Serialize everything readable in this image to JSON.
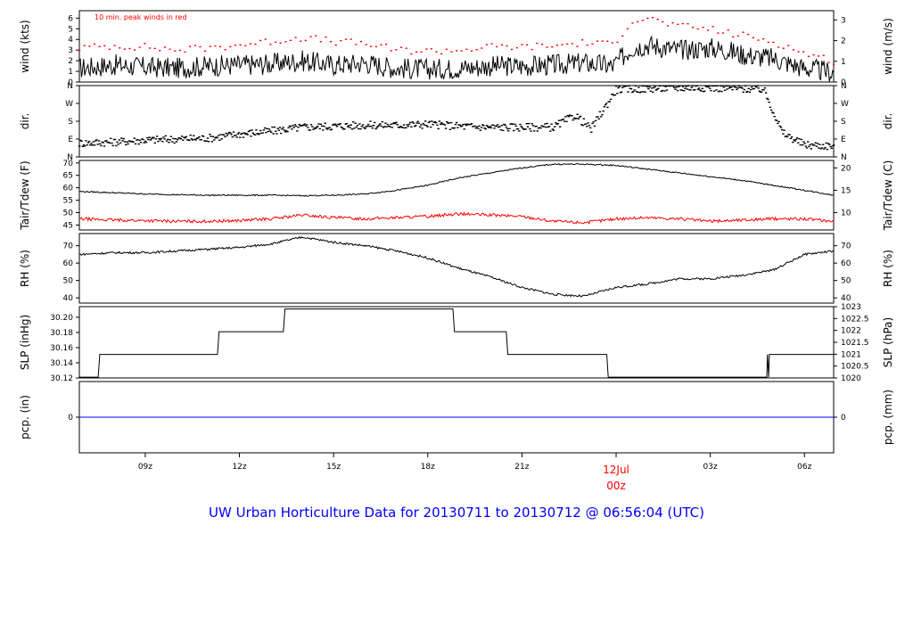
{
  "footer_title": "UW Urban Horticulture Data for 20130711  to  20130712 @ 06:56:04  (UTC)",
  "colors": {
    "frame": "#000000",
    "primary_series": "#000000",
    "peak_series": "#ff0000",
    "dewpoint_series": "#ff0000",
    "precip_series": "#0000ff",
    "footer_text": "#0000ff",
    "date_label": "#ff0000"
  },
  "chart_data": {
    "type": "line",
    "x_axis": {
      "unit": "UTC hour",
      "range": [
        6.9,
        30.93
      ],
      "ticks": [
        {
          "x": 9,
          "label": "09z"
        },
        {
          "x": 12,
          "label": "12z"
        },
        {
          "x": 15,
          "label": "15z"
        },
        {
          "x": 18,
          "label": "18z"
        },
        {
          "x": 21,
          "label": "21z"
        },
        {
          "x": 24,
          "label": "",
          "date_label": "12Jul",
          "sub_label": "00z"
        },
        {
          "x": 27,
          "label": "03z"
        },
        {
          "x": 30,
          "label": "06z"
        }
      ]
    },
    "panels": [
      {
        "id": "wind",
        "ylabel_left": "wind (kts)",
        "ylabel_right": "wind (m/s)",
        "ylim": [
          0,
          6.7
        ],
        "left_ticks": [
          0,
          1,
          2,
          3,
          4,
          5,
          6
        ],
        "right_ticks": [
          {
            "v": 0,
            "label": "0"
          },
          {
            "v": 1,
            "label": "1"
          },
          {
            "v": 2,
            "label": "2"
          },
          {
            "v": 3,
            "label": "3"
          }
        ],
        "right_factor": 1.944,
        "annotation": "10 min. peak winds in red",
        "series": [
          {
            "name": "wind",
            "style": "line",
            "x": [
              6.9,
              8,
              9,
              10,
              11,
              12,
              13,
              14,
              15,
              16,
              17,
              18,
              19,
              20,
              21,
              22,
              23,
              23.9,
              24.5,
              25,
              26,
              27,
              27.5,
              28,
              29,
              30,
              30.93
            ],
            "y": [
              1.3,
              1.6,
              1.4,
              1.3,
              1.5,
              1.6,
              1.7,
              2.0,
              1.6,
              1.8,
              1.3,
              1.2,
              1.3,
              1.5,
              1.5,
              1.6,
              1.8,
              1.5,
              3.2,
              3.5,
              3.0,
              3.2,
              3.0,
              2.6,
              2.2,
              1.3,
              0.9
            ]
          },
          {
            "name": "peak",
            "style": "dots",
            "x": [
              6.9,
              8,
              9,
              10,
              11,
              12,
              13,
              14,
              15,
              16,
              17,
              18,
              19,
              20,
              21,
              22,
              23,
              23.9,
              24.5,
              25,
              26,
              27,
              27.5,
              28,
              29,
              30,
              30.93
            ],
            "y": [
              3.2,
              3.4,
              3.3,
              3.0,
              3.2,
              3.5,
              3.8,
              4.2,
              3.8,
              3.6,
              3.0,
              2.9,
              3.0,
              3.3,
              3.3,
              3.4,
              3.7,
              3.5,
              5.8,
              6.0,
              5.2,
              5.0,
              4.6,
              4.4,
              3.8,
              2.7,
              2.0
            ]
          }
        ]
      },
      {
        "id": "dir",
        "ylabel_left": "dir.",
        "ylabel_right": "dir.",
        "ylim": [
          0,
          360
        ],
        "left_ticks": [
          {
            "v": 0,
            "label": "N"
          },
          {
            "v": 90,
            "label": "E"
          },
          {
            "v": 180,
            "label": "S"
          },
          {
            "v": 270,
            "label": "W"
          },
          {
            "v": 360,
            "label": "N"
          }
        ],
        "right_ticks": [
          {
            "v": 0,
            "label": "N"
          },
          {
            "v": 90,
            "label": "E"
          },
          {
            "v": 180,
            "label": "S"
          },
          {
            "v": 270,
            "label": "W"
          },
          {
            "v": 360,
            "label": "N"
          }
        ],
        "series": [
          {
            "name": "direction",
            "style": "dots",
            "x": [
              6.9,
              8,
              9,
              10,
              11,
              12,
              13,
              14,
              15,
              16,
              17,
              18,
              19,
              20,
              21,
              22,
              22.7,
              23.2,
              24,
              25,
              26,
              27,
              28,
              28.7,
              29.3,
              30,
              30.93
            ],
            "y": [
              70,
              75,
              85,
              90,
              95,
              115,
              130,
              150,
              155,
              160,
              160,
              165,
              155,
              150,
              150,
              150,
              210,
              140,
              340,
              345,
              350,
              350,
              345,
              340,
              120,
              60,
              55
            ]
          }
        ]
      },
      {
        "id": "temp",
        "ylabel_left": "Tair/Tdew (F)",
        "ylabel_right": "Tair/Tdew (C)",
        "ylim": [
          43,
          71
        ],
        "left_ticks": [
          45,
          50,
          55,
          60,
          65,
          70
        ],
        "right_ticks": [
          {
            "v": 10,
            "label": "10"
          },
          {
            "v": 15,
            "label": "15"
          },
          {
            "v": 20,
            "label": "20"
          }
        ],
        "right_transform": "celsius",
        "series": [
          {
            "name": "Tair",
            "style": "line",
            "x": [
              6.9,
              8,
              9,
              10,
              11,
              12,
              13,
              14,
              15,
              16,
              17,
              18,
              19,
              20,
              21,
              22,
              23,
              24,
              25,
              26,
              27,
              28,
              29,
              30,
              30.93
            ],
            "y": [
              58.5,
              58.0,
              57.5,
              57.2,
              57.0,
              57.0,
              57.0,
              56.8,
              57.0,
              57.5,
              59.0,
              61.0,
              64.0,
              66.0,
              68.0,
              69.5,
              69.5,
              69.0,
              67.5,
              66.0,
              64.5,
              63.0,
              61.0,
              59.0,
              57.0
            ]
          },
          {
            "name": "Tdew",
            "style": "line",
            "x": [
              6.9,
              8,
              9,
              10,
              11,
              12,
              13,
              14,
              15,
              16,
              17,
              18,
              19,
              20,
              21,
              22,
              23,
              24,
              25,
              26,
              27,
              28,
              29,
              30,
              30.93
            ],
            "y": [
              47.5,
              47.0,
              46.8,
              46.5,
              46.5,
              46.8,
              47.5,
              49.0,
              48.0,
              47.5,
              48.0,
              48.5,
              49.5,
              49.0,
              48.5,
              46.5,
              46.0,
              47.5,
              48.0,
              47.5,
              46.5,
              47.0,
              47.5,
              47.5,
              46.5
            ]
          }
        ]
      },
      {
        "id": "rh",
        "ylabel_left": "RH (%)",
        "ylabel_right": "RH (%)",
        "ylim": [
          37,
          77
        ],
        "left_ticks": [
          40,
          50,
          60,
          70
        ],
        "right_ticks": [
          {
            "v": 40,
            "label": "40"
          },
          {
            "v": 50,
            "label": "50"
          },
          {
            "v": 60,
            "label": "60"
          },
          {
            "v": 70,
            "label": "70"
          }
        ],
        "series": [
          {
            "name": "RH",
            "style": "line",
            "x": [
              6.9,
              8,
              9,
              10,
              11,
              12,
              13,
              14,
              15,
              16,
              17,
              18,
              19,
              20,
              21,
              22,
              23,
              24,
              25,
              26,
              27,
              28,
              29,
              30,
              30.93
            ],
            "y": [
              65,
              66,
              66,
              67,
              68,
              69,
              71,
              75,
              72,
              70,
              67,
              63,
              57,
              52,
              46,
              42,
              41,
              46,
              48,
              51,
              51,
              53,
              56,
              65,
              67
            ]
          }
        ]
      },
      {
        "id": "slp",
        "ylabel_left": "SLP (inHg)",
        "ylabel_right": "SLP (hPa)",
        "ylim": [
          30.12,
          30.214
        ],
        "left_ticks": [
          {
            "v": 30.12,
            "label": "30.12"
          },
          {
            "v": 30.14,
            "label": "30.14"
          },
          {
            "v": 30.16,
            "label": "30.16"
          },
          {
            "v": 30.18,
            "label": "30.18"
          },
          {
            "v": 30.2,
            "label": "30.20"
          }
        ],
        "right_ticks": [
          {
            "v": 1020,
            "label": "1020"
          },
          {
            "v": 1020.5,
            "label": "1020.5"
          },
          {
            "v": 1021,
            "label": "1021"
          },
          {
            "v": 1021.5,
            "label": "1021.5"
          },
          {
            "v": 1022,
            "label": "1022"
          },
          {
            "v": 1022.5,
            "label": "1022.5"
          },
          {
            "v": 1023,
            "label": "1023"
          }
        ],
        "right_transform": "hpa",
        "series": [
          {
            "name": "SLP",
            "style": "step",
            "x": [
              6.9,
              7.5,
              7.55,
              11.3,
              11.35,
              13.4,
              13.45,
              18.8,
              18.85,
              20.5,
              20.55,
              23.7,
              23.75,
              28.8,
              28.82,
              28.86,
              28.88,
              30.93
            ],
            "y": [
              30.121,
              30.121,
              30.151,
              30.151,
              30.181,
              30.181,
              30.211,
              30.211,
              30.181,
              30.181,
              30.151,
              30.151,
              30.121,
              30.121,
              30.151,
              30.121,
              30.151,
              30.151
            ]
          }
        ]
      },
      {
        "id": "pcp",
        "ylabel_left": "pcp. (in)",
        "ylabel_right": "pcp. (mm)",
        "ylim": [
          -1,
          1
        ],
        "left_ticks": [
          {
            "v": 0,
            "label": "0"
          }
        ],
        "right_ticks": [
          {
            "v": 0,
            "label": "0"
          }
        ],
        "series": [
          {
            "name": "precip",
            "style": "line",
            "x": [
              6.9,
              30.93
            ],
            "y": [
              0,
              0
            ]
          }
        ]
      }
    ]
  }
}
